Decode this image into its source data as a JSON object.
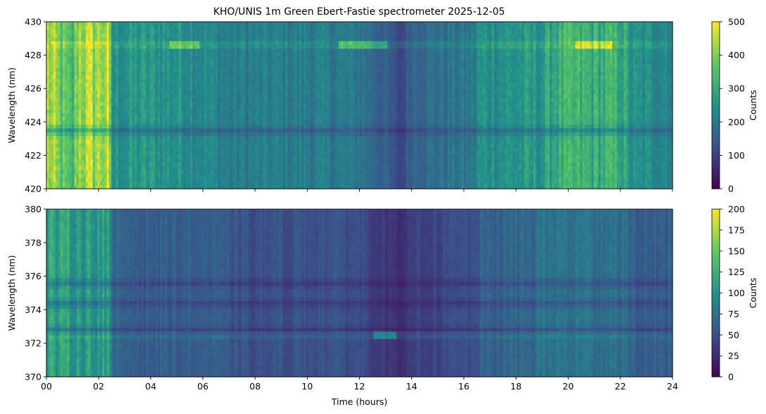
{
  "title": "KHO/UNIS 1m Green Ebert-Fastie spectrometer 2025-12-05",
  "colormap": [
    "#440154",
    "#3b528b",
    "#21918c",
    "#5ec962",
    "#fde725"
  ],
  "chart_data": [
    {
      "type": "heatmap",
      "name": "top",
      "ylabel": "Wavelength (nm)",
      "xlabel": "",
      "xlim": [
        0,
        24
      ],
      "ylim": [
        420,
        430
      ],
      "yticks": [
        420,
        422,
        424,
        426,
        428,
        430
      ],
      "xticks": [
        0,
        2,
        4,
        6,
        8,
        10,
        12,
        14,
        16,
        18,
        20,
        22,
        24
      ],
      "xtick_labels": [],
      "colorbar": {
        "label": "Counts",
        "range": [
          0,
          500
        ],
        "ticks": [
          0,
          100,
          200,
          300,
          400,
          500
        ]
      },
      "time_profile": [
        [
          0,
          0.88
        ],
        [
          1.0,
          0.62
        ],
        [
          1.2,
          0.86
        ],
        [
          2.4,
          0.86
        ],
        [
          2.5,
          0.5
        ],
        [
          3.5,
          0.52
        ],
        [
          5.5,
          0.5
        ],
        [
          7,
          0.42
        ],
        [
          10,
          0.42
        ],
        [
          12,
          0.4
        ],
        [
          13,
          0.3
        ],
        [
          13.6,
          0.2
        ],
        [
          14,
          0.34
        ],
        [
          16.4,
          0.4
        ],
        [
          16.6,
          0.5
        ],
        [
          19,
          0.52
        ],
        [
          19.5,
          0.62
        ],
        [
          22,
          0.62
        ],
        [
          22.5,
          0.48
        ],
        [
          24,
          0.48
        ]
      ],
      "dark_bands": [
        423.5
      ],
      "emission_line": {
        "wavelength": 428.6,
        "peaks": [
          [
            4.7,
            5.9
          ],
          [
            11.2,
            13.1
          ],
          [
            20.3,
            21.7
          ]
        ]
      }
    },
    {
      "type": "heatmap",
      "name": "bottom",
      "ylabel": "Wavelength (nm)",
      "xlabel": "Time (hours)",
      "xlim": [
        0,
        24
      ],
      "ylim": [
        370,
        380
      ],
      "yticks": [
        370,
        372,
        374,
        376,
        378,
        380
      ],
      "xticks": [
        0,
        2,
        4,
        6,
        8,
        10,
        12,
        14,
        16,
        18,
        20,
        22,
        24
      ],
      "xtick_labels": [
        "00",
        "02",
        "04",
        "06",
        "08",
        "10",
        "12",
        "14",
        "16",
        "18",
        "20",
        "22",
        "24"
      ],
      "colorbar": {
        "label": "Counts",
        "range": [
          0,
          200
        ],
        "ticks": [
          0,
          25,
          50,
          75,
          100,
          125,
          150,
          175,
          200
        ]
      },
      "time_profile": [
        [
          0,
          0.56
        ],
        [
          2.4,
          0.54
        ],
        [
          2.5,
          0.32
        ],
        [
          4,
          0.3
        ],
        [
          6,
          0.3
        ],
        [
          8,
          0.24
        ],
        [
          10,
          0.26
        ],
        [
          12,
          0.24
        ],
        [
          13.2,
          0.16
        ],
        [
          13.7,
          0.12
        ],
        [
          14,
          0.2
        ],
        [
          16.4,
          0.24
        ],
        [
          16.6,
          0.3
        ],
        [
          18.6,
          0.34
        ],
        [
          19,
          0.38
        ],
        [
          22,
          0.38
        ],
        [
          22.5,
          0.3
        ],
        [
          24,
          0.3
        ]
      ],
      "dark_bands": [
        375.6,
        374.4,
        372.8
      ],
      "emission_line": {
        "wavelength": 372.4,
        "peaks": [
          [
            12.5,
            13.4
          ]
        ]
      }
    }
  ]
}
